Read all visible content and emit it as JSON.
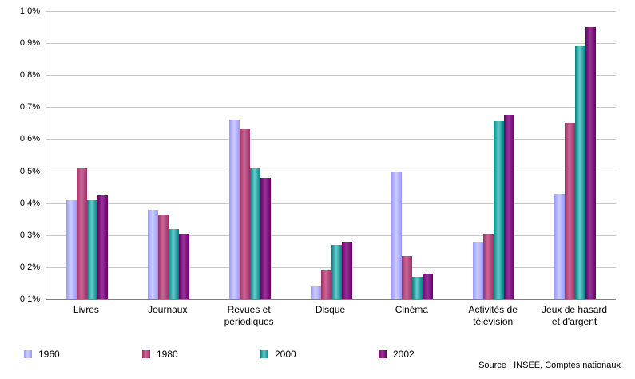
{
  "chart_data": {
    "type": "bar",
    "categories": [
      "Livres",
      "Journaux",
      "Revues et périodiques",
      "Disque",
      "Cinéma",
      "Activités de télévision",
      "Jeux de hasard et d'argent"
    ],
    "series": [
      {
        "name": "1960",
        "color_base": "#9999FF",
        "color_light": "#CCCCFF",
        "values": [
          0.41,
          0.38,
          0.66,
          0.14,
          0.5,
          0.28,
          0.43
        ]
      },
      {
        "name": "1980",
        "color_base": "#993366",
        "color_light": "#CC6699",
        "values": [
          0.51,
          0.365,
          0.63,
          0.19,
          0.235,
          0.305,
          0.65
        ]
      },
      {
        "name": "2000",
        "color_base": "#008080",
        "color_light": "#66CCCC",
        "values": [
          0.41,
          0.32,
          0.51,
          0.27,
          0.17,
          0.655,
          0.89
        ]
      },
      {
        "name": "2002",
        "color_base": "#660066",
        "color_light": "#993399",
        "values": [
          0.425,
          0.305,
          0.48,
          0.28,
          0.18,
          0.675,
          0.95
        ]
      }
    ],
    "title": "",
    "xlabel": "",
    "ylabel": "",
    "ylim": [
      0.1,
      1.0
    ],
    "yticks": [
      "0.1%",
      "0.2%",
      "0.3%",
      "0.4%",
      "0.5%",
      "0.6%",
      "0.7%",
      "0.8%",
      "0.9%",
      "1.0%"
    ],
    "grid": true,
    "legend_position": "bottom-left"
  },
  "source": {
    "text": "Source : INSEE, Comptes nationaux"
  }
}
